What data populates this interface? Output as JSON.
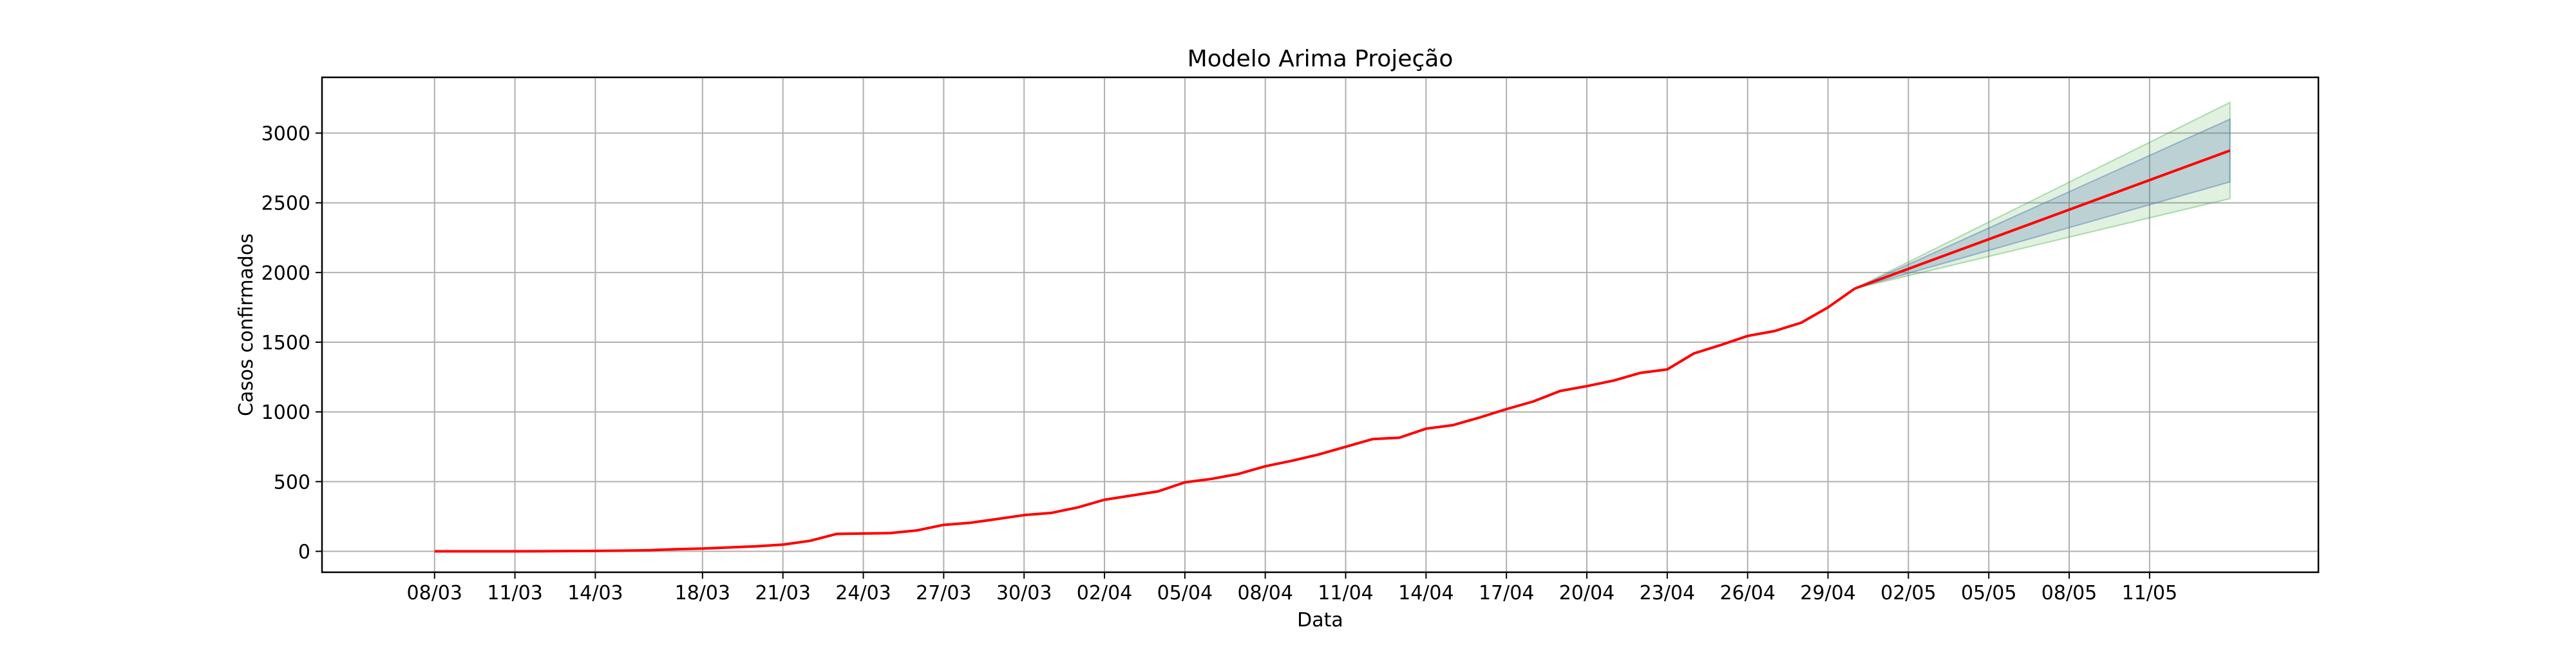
{
  "chart_data": {
    "type": "line",
    "title": "Modelo Arima Projeção",
    "xlabel": "Data",
    "ylabel": "Casos confirmados",
    "ylim": [
      -150,
      3400
    ],
    "yticks": [
      0,
      500,
      1000,
      1500,
      2000,
      2500,
      3000
    ],
    "x_start": "08/03",
    "x_end": "14/05",
    "x_ticks": [
      "08/03",
      "11/03",
      "14/03",
      "18/03",
      "21/03",
      "24/03",
      "27/03",
      "30/03",
      "02/04",
      "05/04",
      "08/04",
      "11/04",
      "14/04",
      "17/04",
      "20/04",
      "23/04",
      "26/04",
      "29/04",
      "02/05",
      "05/05",
      "08/05",
      "11/05"
    ],
    "grid": true,
    "colors": {
      "line": "#ff0000",
      "ci_inner": "#4c72b0",
      "ci_outer": "#2ca02c",
      "grid": "#b0b0b0"
    },
    "series": [
      {
        "kind": "observed",
        "points": [
          [
            "08/03",
            0
          ],
          [
            "09/03",
            0
          ],
          [
            "10/03",
            0
          ],
          [
            "11/03",
            0
          ],
          [
            "12/03",
            1
          ],
          [
            "13/03",
            2
          ],
          [
            "14/03",
            3
          ],
          [
            "15/03",
            5
          ],
          [
            "16/03",
            8
          ],
          [
            "17/03",
            15
          ],
          [
            "18/03",
            20
          ],
          [
            "19/03",
            28
          ],
          [
            "20/03",
            36
          ],
          [
            "21/03",
            48
          ],
          [
            "22/03",
            75
          ],
          [
            "23/03",
            125
          ],
          [
            "24/03",
            128
          ],
          [
            "25/03",
            131
          ],
          [
            "26/03",
            150
          ],
          [
            "27/03",
            190
          ],
          [
            "28/03",
            205
          ],
          [
            "29/03",
            232
          ],
          [
            "30/03",
            260
          ],
          [
            "31/03",
            275
          ],
          [
            "01/04",
            315
          ],
          [
            "02/04",
            370
          ],
          [
            "03/04",
            400
          ],
          [
            "04/04",
            430
          ],
          [
            "05/04",
            495
          ],
          [
            "06/04",
            520
          ],
          [
            "07/04",
            555
          ],
          [
            "08/04",
            610
          ],
          [
            "09/04",
            650
          ],
          [
            "10/04",
            695
          ],
          [
            "11/04",
            750
          ],
          [
            "12/04",
            805
          ],
          [
            "13/04",
            815
          ],
          [
            "14/04",
            880
          ],
          [
            "15/04",
            905
          ],
          [
            "16/04",
            960
          ],
          [
            "17/04",
            1020
          ],
          [
            "18/04",
            1075
          ],
          [
            "19/04",
            1150
          ],
          [
            "20/04",
            1185
          ],
          [
            "21/04",
            1225
          ],
          [
            "22/04",
            1280
          ],
          [
            "23/04",
            1305
          ],
          [
            "24/04",
            1420
          ],
          [
            "25/04",
            1480
          ],
          [
            "26/04",
            1545
          ],
          [
            "27/04",
            1580
          ],
          [
            "28/04",
            1640
          ],
          [
            "29/04",
            1750
          ],
          [
            "30/04",
            1885
          ]
        ]
      },
      {
        "kind": "forecast",
        "points": [
          [
            "30/04",
            1885
          ],
          [
            "14/05",
            2875
          ]
        ],
        "ci_inner": [
          [
            1885,
            1885
          ],
          [
            2650,
            3100
          ]
        ],
        "ci_outer": [
          [
            1885,
            1885
          ],
          [
            2530,
            3220
          ]
        ]
      }
    ]
  }
}
